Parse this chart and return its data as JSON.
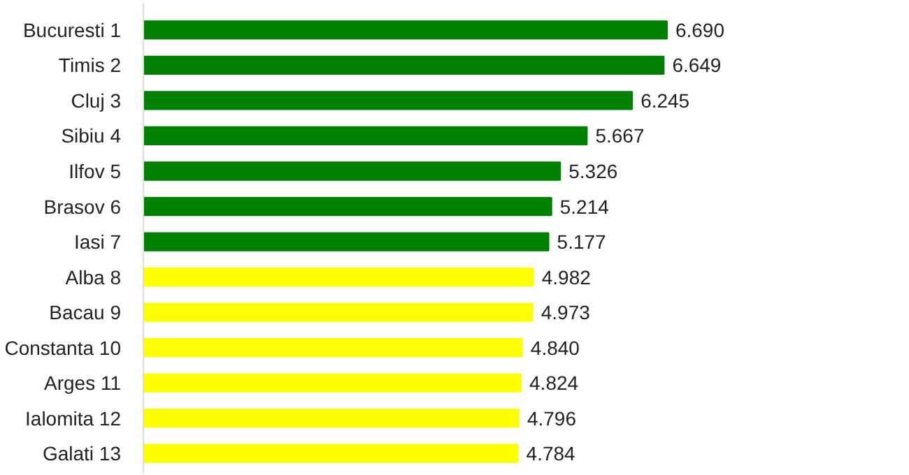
{
  "chart_data": {
    "type": "bar",
    "orientation": "horizontal",
    "categories": [
      "Bucuresti 1",
      "Timis 2",
      "Cluj 3",
      "Sibiu 4",
      "Ilfov 5",
      "Brasov 6",
      "Iasi 7",
      "Alba 8",
      "Bacau 9",
      "Constanta 10",
      "Arges 11",
      "Ialomita 12",
      "Galati 13"
    ],
    "values": [
      6690,
      6649,
      6245,
      5667,
      5326,
      5214,
      5177,
      4982,
      4973,
      4840,
      4824,
      4796,
      4784
    ],
    "colors": [
      "#008000",
      "#008000",
      "#008000",
      "#008000",
      "#008000",
      "#008000",
      "#008000",
      "#ffff00",
      "#ffff00",
      "#ffff00",
      "#ffff00",
      "#ffff00",
      "#ffff00"
    ],
    "value_labels": [
      "6.690",
      "6.649",
      "6.245",
      "5.667",
      "5.326",
      "5.214",
      "5.177",
      "4.982",
      "4.973",
      "4.840",
      "4.824",
      "4.796",
      "4.784"
    ],
    "grid": false
  }
}
